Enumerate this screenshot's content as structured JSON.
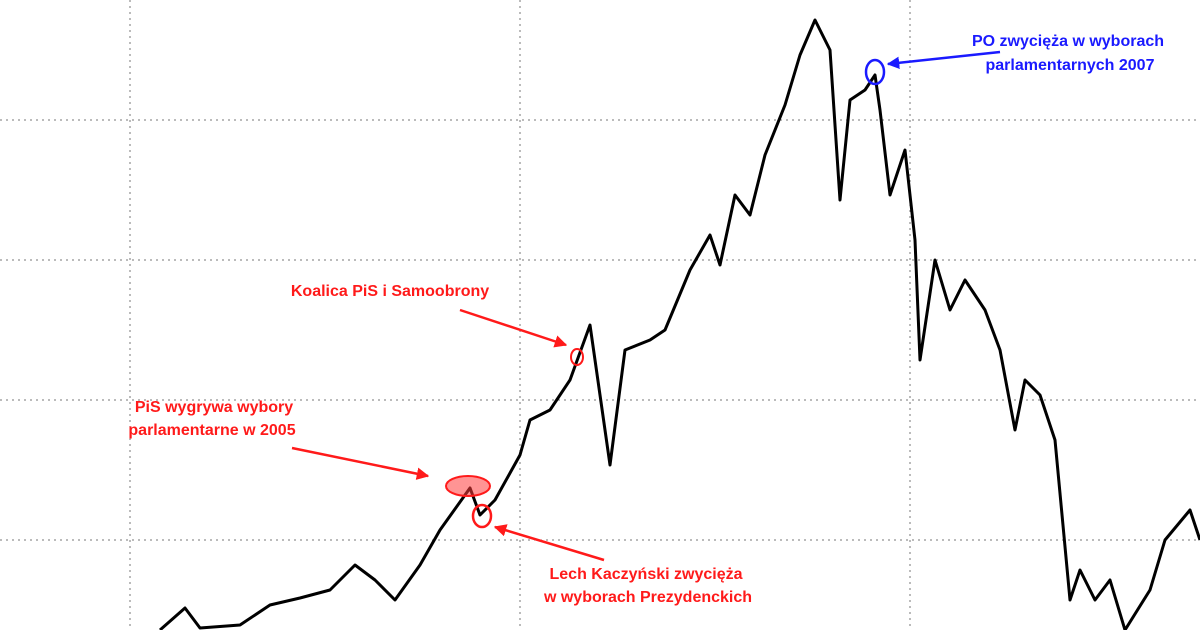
{
  "chart_data": {
    "type": "line",
    "x": [
      16,
      18.5,
      20,
      24,
      27,
      30,
      33,
      35.5,
      37.5,
      39.5,
      42,
      44,
      47,
      48,
      49.5,
      52,
      53,
      55,
      57,
      59,
      60,
      61,
      62.5,
      65,
      66.5,
      69,
      71,
      72,
      73.5,
      75,
      76.5,
      78.5,
      80,
      81.5,
      83,
      84,
      85,
      86.5,
      87.5,
      88,
      89,
      90.5,
      91.5,
      92,
      93.5,
      95,
      96.5,
      98.5,
      100,
      101.5,
      102.5,
      104,
      105.5,
      107,
      108,
      109.5,
      111,
      112.5,
      115,
      116.5,
      119,
      120
    ],
    "values": [
      0,
      2.2,
      0.2,
      0.5,
      2.5,
      3.2,
      4,
      6.5,
      5,
      3,
      6.5,
      10,
      14.2,
      11.5,
      13,
      17.5,
      21,
      22,
      25,
      30.5,
      23.5,
      16.5,
      28,
      29,
      30,
      36,
      39.5,
      36.5,
      43.5,
      41.5,
      47.5,
      52.5,
      57.5,
      61,
      58,
      43,
      53,
      54,
      55.5,
      52,
      43.5,
      48,
      39,
      27,
      37,
      32,
      35,
      32,
      28,
      20,
      25,
      23.5,
      19,
      3,
      6,
      3,
      5,
      0,
      4,
      9,
      12,
      9
    ],
    "color": "#000000",
    "xlim": [
      0,
      120
    ],
    "xticks": [
      13,
      52,
      91
    ],
    "ylim": [
      0,
      63
    ],
    "yticks": [
      9,
      23,
      37,
      51
    ],
    "grid": true,
    "annotations": [
      {
        "lines": [
          "PO zwycięża w wyborach",
          "parlamentarnych 2007"
        ],
        "color": "#1a1aff"
      },
      {
        "lines": [
          "Koalica PiS i Samoobrony"
        ],
        "color": "#ff1a1a"
      },
      {
        "lines": [
          "PiS wygrywa wybory",
          "parlamentarne w 2005"
        ],
        "color": "#ff1a1a"
      },
      {
        "lines": [
          "Lech Kaczyński zwycięża",
          "w wyborach Prezydenckich"
        ],
        "color": "#ff1a1a"
      }
    ]
  }
}
